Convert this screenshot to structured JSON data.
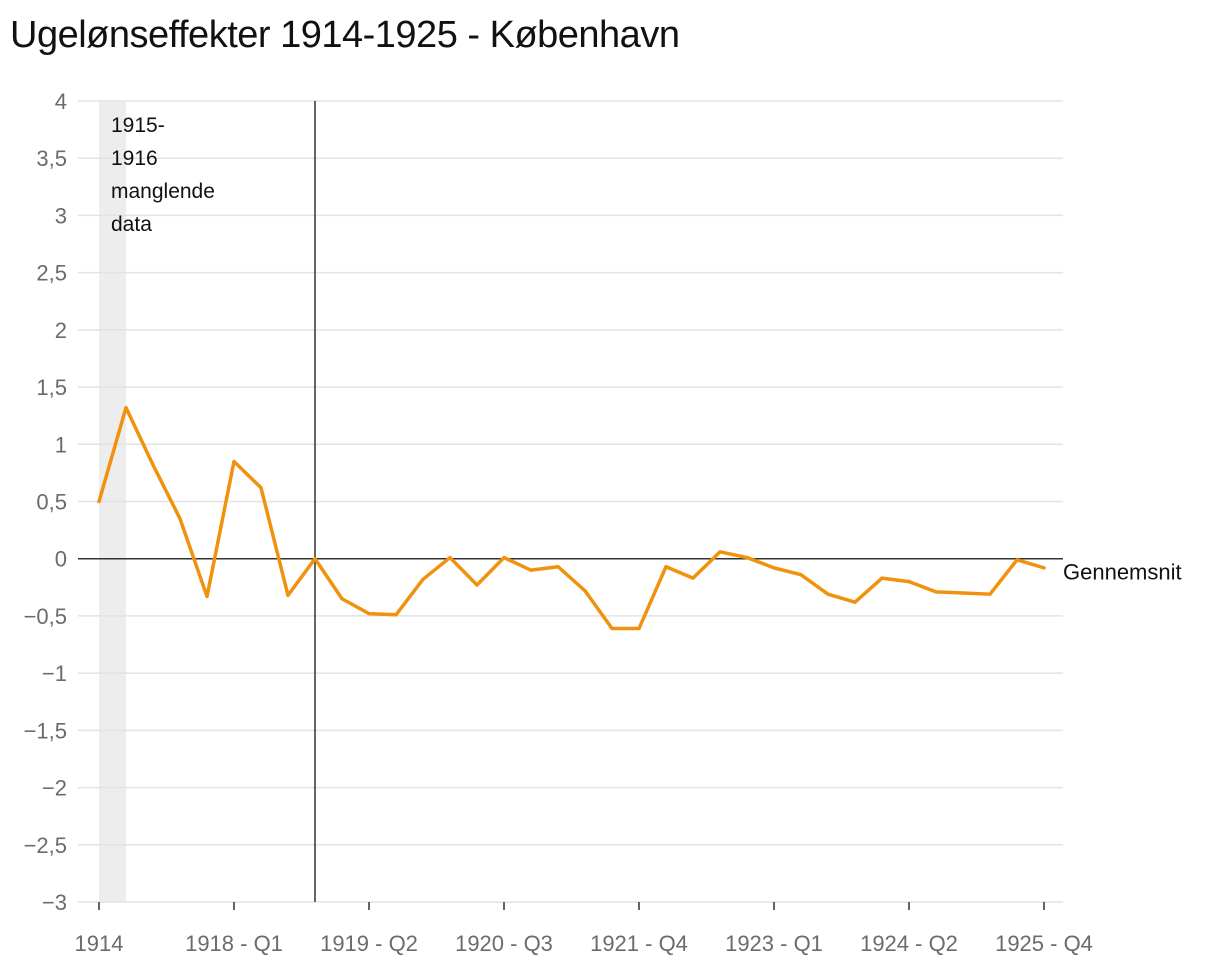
{
  "title": "Ugelønseffekter 1914-1925 - København",
  "colors": {
    "line": "#F0920E",
    "grid": "#e3e3e3",
    "axis": "#333333",
    "shade": "#ededed"
  },
  "chart_data": {
    "type": "line",
    "title": "Ugelønseffekter 1914-1925 - København",
    "xlabel": "",
    "ylabel": "",
    "ylim": [
      -3,
      4
    ],
    "yticks": [
      4,
      3.5,
      3,
      2.5,
      2,
      1.5,
      1,
      0.5,
      0,
      -0.5,
      -1,
      -1.5,
      -2,
      -2.5,
      -3
    ],
    "ytick_labels": [
      "4",
      "3,5",
      "3",
      "2,5",
      "2",
      "1,5",
      "1",
      "0,5",
      "0",
      "−0,5",
      "−1",
      "−1,5",
      "−2",
      "−2,5",
      "−3"
    ],
    "xtick_labels": [
      {
        "index": 0,
        "label": "1914"
      },
      {
        "index": 5,
        "label": "1918 - Q1"
      },
      {
        "index": 10,
        "label": "1919 - Q2"
      },
      {
        "index": 15,
        "label": "1920 - Q3"
      },
      {
        "index": 20,
        "label": "1921 - Q4"
      },
      {
        "index": 25,
        "label": "1923 - Q1"
      },
      {
        "index": 30,
        "label": "1924 - Q2"
      },
      {
        "index": 35,
        "label": "1925 - Q4"
      }
    ],
    "series": [
      {
        "name": "Ugelønseffekt",
        "values": [
          0.5,
          1.32,
          0.82,
          0.35,
          -0.33,
          0.85,
          0.62,
          -0.32,
          0.0,
          -0.35,
          -0.48,
          -0.49,
          -0.18,
          0.01,
          -0.23,
          0.01,
          -0.1,
          -0.07,
          -0.28,
          -0.61,
          -0.61,
          -0.07,
          -0.17,
          0.06,
          0.01,
          -0.08,
          -0.14,
          -0.31,
          -0.38,
          -0.17,
          -0.2,
          -0.29,
          -0.3,
          -0.31,
          -0.01,
          -0.08
        ],
        "x_index": [
          0,
          1,
          2,
          3,
          4,
          5,
          6,
          7,
          8,
          9,
          10,
          11,
          12,
          13,
          14,
          15,
          16,
          17,
          18,
          19,
          20,
          21,
          22,
          23,
          24,
          25,
          26,
          27,
          28,
          29,
          30,
          31,
          32,
          33,
          34,
          35
        ]
      }
    ],
    "reference_line": {
      "value": 0,
      "label": "Gennemsnit"
    },
    "vertical_line_index": 8,
    "shaded_region": {
      "from_index": 0,
      "to_index": 1,
      "label": [
        "1915-",
        "1916",
        "manglende",
        "data"
      ]
    }
  }
}
